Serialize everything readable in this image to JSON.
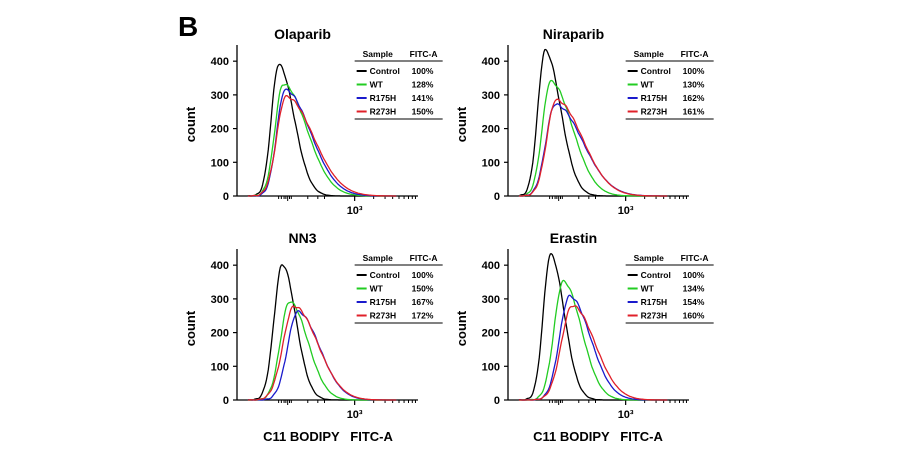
{
  "panel_label": "B",
  "x_axis_label": "C11 BODIPY   FITC-A",
  "colors": {
    "Control": "#000000",
    "WT": "#22cc22",
    "R175H": "#1a1acc",
    "R273H": "#e0202a",
    "axis": "#000000"
  },
  "chart_data": [
    {
      "type": "line",
      "title": "Olaparib",
      "ylabel": "count",
      "ylim": [
        0,
        400
      ],
      "yticks": [
        0,
        100,
        200,
        300,
        400
      ],
      "xtick_label": "10³",
      "legend_header": [
        "Sample",
        "FITC-A"
      ],
      "legend": [
        {
          "sample": "Control",
          "value": "100%"
        },
        {
          "sample": "WT",
          "value": "128%"
        },
        {
          "sample": "R175H",
          "value": "141%"
        },
        {
          "sample": "R273H",
          "value": "150%"
        }
      ],
      "series": [
        {
          "name": "Control",
          "peak_x": 0.23,
          "peak_y": 390,
          "left_width": 0.04,
          "right_width": 0.085,
          "tail": 0.0
        },
        {
          "name": "WT",
          "peak_x": 0.255,
          "peak_y": 332,
          "left_width": 0.045,
          "right_width": 0.13,
          "tail": 0.0
        },
        {
          "name": "R175H",
          "peak_x": 0.265,
          "peak_y": 315,
          "left_width": 0.045,
          "right_width": 0.14,
          "tail": 0.0
        },
        {
          "name": "R273H",
          "peak_x": 0.27,
          "peak_y": 295,
          "left_width": 0.05,
          "right_width": 0.15,
          "tail": 0.0
        }
      ]
    },
    {
      "type": "line",
      "title": "Niraparib",
      "ylabel": "count",
      "ylim": [
        0,
        400
      ],
      "yticks": [
        0,
        100,
        200,
        300,
        400
      ],
      "xtick_label": "10³",
      "legend_header": [
        "Sample",
        "FITC-A"
      ],
      "legend": [
        {
          "sample": "Control",
          "value": "100%"
        },
        {
          "sample": "WT",
          "value": "130%"
        },
        {
          "sample": "R175H",
          "value": "162%"
        },
        {
          "sample": "R273H",
          "value": "161%"
        }
      ],
      "series": [
        {
          "name": "Control",
          "peak_x": 0.205,
          "peak_y": 432,
          "left_width": 0.04,
          "right_width": 0.085,
          "tail": 0.0
        },
        {
          "name": "WT",
          "peak_x": 0.235,
          "peak_y": 340,
          "left_width": 0.045,
          "right_width": 0.12,
          "tail": 0.0
        },
        {
          "name": "R175H",
          "peak_x": 0.26,
          "peak_y": 272,
          "left_width": 0.05,
          "right_width": 0.15,
          "tail": 0.0
        },
        {
          "name": "R273H",
          "peak_x": 0.265,
          "peak_y": 285,
          "left_width": 0.05,
          "right_width": 0.145,
          "tail": 0.0
        }
      ]
    },
    {
      "type": "line",
      "title": "NN3",
      "ylabel": "count",
      "ylim": [
        0,
        400
      ],
      "yticks": [
        0,
        100,
        200,
        300,
        400
      ],
      "xtick_label": "10³",
      "legend_header": [
        "Sample",
        "FITC-A"
      ],
      "legend": [
        {
          "sample": "Control",
          "value": "100%"
        },
        {
          "sample": "WT",
          "value": "150%"
        },
        {
          "sample": "R175H",
          "value": "167%"
        },
        {
          "sample": "R273H",
          "value": "172%"
        }
      ],
      "series": [
        {
          "name": "Control",
          "peak_x": 0.25,
          "peak_y": 402,
          "left_width": 0.045,
          "right_width": 0.075,
          "tail": 0.0
        },
        {
          "name": "WT",
          "peak_x": 0.29,
          "peak_y": 292,
          "left_width": 0.05,
          "right_width": 0.1,
          "tail": 0.0
        },
        {
          "name": "R175H",
          "peak_x": 0.335,
          "peak_y": 262,
          "left_width": 0.055,
          "right_width": 0.12,
          "tail": 0.0
        },
        {
          "name": "R273H",
          "peak_x": 0.315,
          "peak_y": 278,
          "left_width": 0.06,
          "right_width": 0.13,
          "tail": 0.0
        }
      ]
    },
    {
      "type": "line",
      "title": "Erastin",
      "ylabel": "count",
      "ylim": [
        0,
        400
      ],
      "yticks": [
        0,
        100,
        200,
        300,
        400
      ],
      "xtick_label": "10³",
      "legend_header": [
        "Sample",
        "FITC-A"
      ],
      "legend": [
        {
          "sample": "Control",
          "value": "100%"
        },
        {
          "sample": "WT",
          "value": "134%"
        },
        {
          "sample": "R175H",
          "value": "154%"
        },
        {
          "sample": "R273H",
          "value": "160%"
        }
      ],
      "series": [
        {
          "name": "Control",
          "peak_x": 0.235,
          "peak_y": 432,
          "left_width": 0.04,
          "right_width": 0.075,
          "tail": 0.0
        },
        {
          "name": "WT",
          "peak_x": 0.305,
          "peak_y": 352,
          "left_width": 0.05,
          "right_width": 0.1,
          "tail": 0.0
        },
        {
          "name": "R175H",
          "peak_x": 0.34,
          "peak_y": 308,
          "left_width": 0.055,
          "right_width": 0.115,
          "tail": 0.0
        },
        {
          "name": "R273H",
          "peak_x": 0.355,
          "peak_y": 280,
          "left_width": 0.06,
          "right_width": 0.125,
          "tail": 0.0
        }
      ]
    }
  ]
}
